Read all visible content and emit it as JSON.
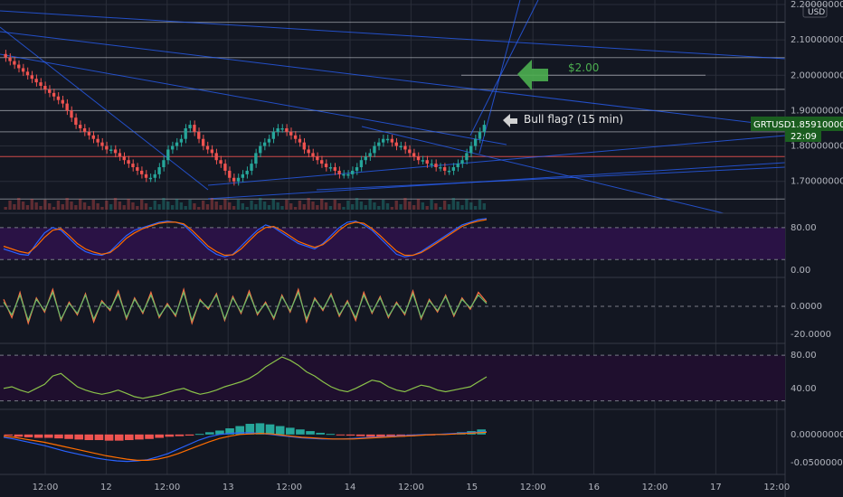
{
  "chart_data": {
    "type": "line",
    "symbol": "GRTUSD",
    "currency": "USD",
    "current_price": "1.85910000",
    "countdown": "22:09",
    "x_ticks": [
      "12:00",
      "12",
      "12:00",
      "13",
      "12:00",
      "14",
      "12:00",
      "15",
      "12:00",
      "16",
      "12:00",
      "17",
      "12:00"
    ],
    "price_axis": {
      "ylim": [
        1.62,
        2.2
      ],
      "ticks": [
        "2.20000000",
        "2.10000000",
        "2.00000000",
        "1.90000000",
        "1.80000000",
        "1.70000000"
      ]
    },
    "price_series": {
      "name": "GRTUSD",
      "close": [
        2.05,
        2.04,
        2.03,
        2.02,
        2.01,
        2.0,
        1.99,
        1.98,
        1.97,
        1.96,
        1.95,
        1.94,
        1.93,
        1.92,
        1.9,
        1.88,
        1.86,
        1.85,
        1.84,
        1.83,
        1.82,
        1.81,
        1.8,
        1.79,
        1.79,
        1.78,
        1.77,
        1.76,
        1.75,
        1.74,
        1.73,
        1.72,
        1.71,
        1.71,
        1.72,
        1.74,
        1.76,
        1.79,
        1.8,
        1.81,
        1.82,
        1.85,
        1.86,
        1.84,
        1.82,
        1.8,
        1.79,
        1.78,
        1.76,
        1.75,
        1.73,
        1.71,
        1.7,
        1.71,
        1.72,
        1.73,
        1.75,
        1.78,
        1.8,
        1.81,
        1.82,
        1.84,
        1.85,
        1.85,
        1.84,
        1.83,
        1.82,
        1.81,
        1.79,
        1.78,
        1.77,
        1.76,
        1.75,
        1.74,
        1.74,
        1.73,
        1.72,
        1.72,
        1.72,
        1.73,
        1.74,
        1.76,
        1.77,
        1.78,
        1.8,
        1.81,
        1.82,
        1.82,
        1.81,
        1.8,
        1.8,
        1.79,
        1.78,
        1.77,
        1.76,
        1.76,
        1.75,
        1.75,
        1.74,
        1.74,
        1.73,
        1.73,
        1.74,
        1.75,
        1.76,
        1.78,
        1.8,
        1.82,
        1.84,
        1.86
      ],
      "open": [
        2.06,
        2.05,
        2.04,
        2.03,
        2.02,
        2.01,
        2.0,
        1.99,
        1.98,
        1.97,
        1.96,
        1.95,
        1.94,
        1.93,
        1.92,
        1.9,
        1.88,
        1.86,
        1.85,
        1.84,
        1.83,
        1.82,
        1.81,
        1.8,
        1.79,
        1.79,
        1.78,
        1.77,
        1.76,
        1.75,
        1.74,
        1.73,
        1.72,
        1.71,
        1.71,
        1.72,
        1.74,
        1.76,
        1.79,
        1.8,
        1.81,
        1.82,
        1.85,
        1.86,
        1.84,
        1.82,
        1.8,
        1.79,
        1.78,
        1.76,
        1.75,
        1.73,
        1.71,
        1.7,
        1.71,
        1.72,
        1.73,
        1.75,
        1.78,
        1.8,
        1.81,
        1.82,
        1.84,
        1.85,
        1.85,
        1.84,
        1.83,
        1.82,
        1.81,
        1.79,
        1.78,
        1.77,
        1.76,
        1.75,
        1.74,
        1.74,
        1.73,
        1.72,
        1.72,
        1.72,
        1.73,
        1.74,
        1.76,
        1.77,
        1.78,
        1.8,
        1.81,
        1.82,
        1.82,
        1.81,
        1.8,
        1.8,
        1.79,
        1.78,
        1.77,
        1.76,
        1.76,
        1.75,
        1.75,
        1.74,
        1.74,
        1.73,
        1.73,
        1.74,
        1.75,
        1.76,
        1.78,
        1.8,
        1.82,
        1.84
      ]
    },
    "horizontal_levels": [
      2.15,
      2.05,
      1.96,
      1.9,
      1.84,
      1.77,
      1.65
    ],
    "annotations": [
      {
        "text": "$2.00",
        "price": 2.0
      },
      {
        "text": "Bull flag? (15 min)",
        "price": 1.87
      }
    ],
    "stoch_panel": {
      "ticks": [
        "80.00",
        "0.00"
      ],
      "ylim": [
        -10,
        100
      ],
      "k": [
        40,
        35,
        30,
        28,
        50,
        70,
        80,
        75,
        60,
        45,
        35,
        30,
        28,
        35,
        50,
        65,
        75,
        80,
        85,
        90,
        92,
        90,
        85,
        70,
        55,
        40,
        30,
        25,
        30,
        45,
        60,
        75,
        85,
        80,
        70,
        60,
        50,
        45,
        40,
        50,
        65,
        80,
        90,
        92,
        85,
        75,
        60,
        45,
        30,
        25,
        28,
        35,
        45,
        55,
        65,
        75,
        85,
        90,
        95,
        97
      ],
      "d": [
        45,
        40,
        35,
        32,
        45,
        62,
        75,
        78,
        65,
        50,
        40,
        34,
        30,
        33,
        45,
        60,
        70,
        78,
        83,
        88,
        90,
        90,
        87,
        75,
        60,
        45,
        35,
        28,
        29,
        40,
        55,
        70,
        80,
        82,
        74,
        64,
        54,
        48,
        43,
        48,
        60,
        75,
        86,
        90,
        88,
        78,
        65,
        50,
        36,
        28,
        28,
        33,
        42,
        52,
        62,
        72,
        82,
        88,
        92,
        95
      ]
    },
    "momentum_panel": {
      "ticks": [
        "0.0000",
        "-20.0000"
      ],
      "ylim": [
        -25,
        18
      ],
      "series1": [
        5,
        -8,
        10,
        -12,
        6,
        -4,
        12,
        -10,
        3,
        -6,
        9,
        -11,
        4,
        -3,
        11,
        -9,
        6,
        -5,
        10,
        -8,
        2,
        -7,
        12,
        -12,
        5,
        -2,
        9,
        -10,
        7,
        -5,
        11,
        -6,
        3,
        -9,
        8,
        -4,
        12,
        -11,
        6,
        -3,
        9,
        -7,
        4,
        -10,
        10,
        -5,
        7,
        -8,
        3,
        -6,
        11,
        -9,
        5,
        -4,
        8,
        -7,
        6,
        -2,
        10,
        3
      ],
      "series2": [
        3,
        -6,
        8,
        -10,
        5,
        -3,
        10,
        -9,
        2,
        -5,
        8,
        -9,
        3,
        -2,
        9,
        -8,
        5,
        -4,
        8,
        -7,
        1,
        -6,
        10,
        -10,
        4,
        -1,
        8,
        -9,
        6,
        -4,
        9,
        -5,
        2,
        -8,
        7,
        -3,
        10,
        -9,
        5,
        -2,
        8,
        -6,
        3,
        -8,
        8,
        -4,
        6,
        -7,
        2,
        -5,
        9,
        -8,
        4,
        -3,
        7,
        -6,
        5,
        -1,
        8,
        2
      ]
    },
    "rsi_panel": {
      "ticks": [
        "80.00",
        "40.00"
      ],
      "ylim": [
        18,
        90
      ],
      "values": [
        40,
        42,
        38,
        35,
        40,
        45,
        55,
        58,
        50,
        42,
        38,
        35,
        33,
        35,
        38,
        34,
        30,
        28,
        30,
        32,
        35,
        38,
        40,
        36,
        33,
        35,
        38,
        42,
        45,
        48,
        52,
        58,
        66,
        72,
        78,
        74,
        68,
        60,
        55,
        48,
        42,
        38,
        36,
        40,
        45,
        50,
        48,
        42,
        38,
        36,
        40,
        44,
        42,
        38,
        36,
        38,
        40,
        42,
        48,
        54
      ]
    },
    "macd_panel": {
      "ticks": [
        "0.00000000",
        "-0.05000000"
      ],
      "ylim": [
        -0.068,
        0.04
      ],
      "histogram": [
        -0.002,
        -0.004,
        -0.005,
        -0.006,
        -0.006,
        -0.007,
        -0.008,
        -0.009,
        -0.01,
        -0.01,
        -0.011,
        -0.011,
        -0.01,
        -0.009,
        -0.008,
        -0.006,
        -0.004,
        -0.003,
        -0.002,
        0.001,
        0.004,
        0.007,
        0.011,
        0.015,
        0.019,
        0.02,
        0.018,
        0.015,
        0.012,
        0.009,
        0.006,
        0.003,
        0.001,
        -0.001,
        -0.002,
        -0.003,
        -0.004,
        -0.005,
        -0.005,
        -0.004,
        -0.003,
        -0.002,
        -0.001,
        0.001,
        0.002,
        0.004,
        0.006,
        0.009
      ],
      "macd": [
        -0.005,
        -0.008,
        -0.012,
        -0.016,
        -0.02,
        -0.025,
        -0.03,
        -0.034,
        -0.038,
        -0.042,
        -0.045,
        -0.047,
        -0.048,
        -0.047,
        -0.045,
        -0.04,
        -0.034,
        -0.026,
        -0.018,
        -0.01,
        -0.004,
        0.0,
        0.002,
        0.003,
        0.003,
        0.002,
        0.0,
        -0.002,
        -0.004,
        -0.006,
        -0.007,
        -0.008,
        -0.008,
        -0.008,
        -0.007,
        -0.006,
        -0.005,
        -0.004,
        -0.003,
        -0.002,
        -0.001,
        0.0,
        0.0,
        0.001,
        0.002,
        0.003,
        0.004,
        0.005
      ],
      "signal": [
        -0.003,
        -0.005,
        -0.008,
        -0.011,
        -0.014,
        -0.018,
        -0.022,
        -0.026,
        -0.03,
        -0.034,
        -0.038,
        -0.041,
        -0.044,
        -0.046,
        -0.046,
        -0.044,
        -0.04,
        -0.034,
        -0.027,
        -0.02,
        -0.013,
        -0.007,
        -0.003,
        0.0,
        0.001,
        0.002,
        0.001,
        -0.001,
        -0.003,
        -0.005,
        -0.006,
        -0.007,
        -0.008,
        -0.008,
        -0.008,
        -0.007,
        -0.006,
        -0.005,
        -0.004,
        -0.003,
        -0.002,
        -0.001,
        0.0,
        0.0,
        0.001,
        0.002,
        0.003,
        0.004
      ]
    },
    "colors": {
      "background": "#131722",
      "up": "#26a69a",
      "down": "#ef5350",
      "grid": "#2a2e39",
      "level": "#d1d4dc",
      "trend": "#2962ff",
      "arrow": "#4caf50",
      "stoch_fill": "#2a1245",
      "rsi_fill": "#1f0f2e",
      "price_badge": "#1b5e20"
    }
  }
}
